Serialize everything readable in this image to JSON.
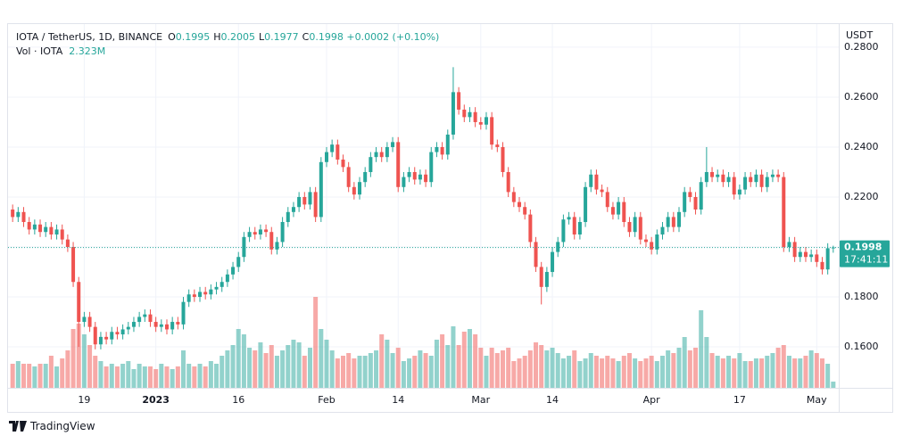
{
  "chart_data": {
    "type": "candlestick",
    "legend": {
      "symbol": "IOTA / TetherUS, 1D, BINANCE",
      "fields": [
        {
          "key": "O",
          "value": 0.1995
        },
        {
          "key": "H",
          "value": 0.2005
        },
        {
          "key": "L",
          "value": 0.1977
        },
        {
          "key": "C",
          "value": 0.1998
        }
      ],
      "change": "+0.0002 (+0.10%)",
      "volume_name": "Vol · IOTA",
      "volume_value": "2.323M"
    },
    "axis_unit": "USDT",
    "countdown": "17:41:11",
    "footer": "TradingView",
    "up_color": "#26a69a",
    "down_color": "#ef5350",
    "grid": true,
    "xlim": [
      -1,
      150
    ],
    "xticks": [
      {
        "value": 13,
        "label": "19"
      },
      {
        "value": 26,
        "label": "2023"
      },
      {
        "value": 41,
        "label": "16"
      },
      {
        "value": 57,
        "label": "Feb"
      },
      {
        "value": 70,
        "label": "14"
      },
      {
        "value": 85,
        "label": "Mar"
      },
      {
        "value": 98,
        "label": "14"
      },
      {
        "value": 116,
        "label": "Apr"
      },
      {
        "value": 132,
        "label": "17"
      },
      {
        "value": 146,
        "label": "May"
      }
    ],
    "ylim": [
      0.1436,
      0.2889
    ],
    "yticks": [
      {
        "value": 0.16,
        "label": "0.1600"
      },
      {
        "value": 0.18,
        "label": "0.1800"
      },
      {
        "value": 0.2,
        "label": "0.2000"
      },
      {
        "value": 0.22,
        "label": "0.2200"
      },
      {
        "value": 0.24,
        "label": "0.2400"
      },
      {
        "value": 0.26,
        "label": "0.2600"
      },
      {
        "value": 0.28,
        "label": "0.2800"
      }
    ],
    "open": [
      0.215,
      0.212,
      0.214,
      0.21,
      0.207,
      0.209,
      0.206,
      0.208,
      0.205,
      0.207,
      0.203,
      0.2,
      0.186,
      0.17,
      0.172,
      0.168,
      0.161,
      0.164,
      0.163,
      0.166,
      0.165,
      0.167,
      0.168,
      0.17,
      0.172,
      0.173,
      0.17,
      0.168,
      0.169,
      0.167,
      0.17,
      0.169,
      0.178,
      0.181,
      0.18,
      0.182,
      0.181,
      0.183,
      0.184,
      0.186,
      0.189,
      0.192,
      0.196,
      0.204,
      0.206,
      0.205,
      0.207,
      0.206,
      0.199,
      0.202,
      0.21,
      0.214,
      0.216,
      0.22,
      0.217,
      0.222,
      0.212,
      0.234,
      0.238,
      0.241,
      0.235,
      0.232,
      0.224,
      0.221,
      0.226,
      0.23,
      0.236,
      0.238,
      0.236,
      0.24,
      0.242,
      0.224,
      0.228,
      0.23,
      0.227,
      0.229,
      0.226,
      0.238,
      0.24,
      0.237,
      0.245,
      0.262,
      0.255,
      0.252,
      0.254,
      0.25,
      0.249,
      0.252,
      0.241,
      0.24,
      0.23,
      0.222,
      0.218,
      0.216,
      0.213,
      0.202,
      0.192,
      0.184,
      0.19,
      0.198,
      0.202,
      0.211,
      0.212,
      0.205,
      0.21,
      0.224,
      0.229,
      0.223,
      0.222,
      0.216,
      0.213,
      0.218,
      0.21,
      0.206,
      0.212,
      0.203,
      0.202,
      0.199,
      0.205,
      0.208,
      0.212,
      0.208,
      0.214,
      0.222,
      0.22,
      0.215,
      0.226,
      0.23,
      0.228,
      0.229,
      0.226,
      0.228,
      0.221,
      0.223,
      0.228,
      0.226,
      0.229,
      0.224,
      0.228,
      0.229,
      0.228,
      0.2,
      0.202,
      0.196,
      0.198,
      0.196,
      0.197,
      0.194,
      0.191,
      0.1995
    ],
    "high": [
      0.217,
      0.216,
      0.216,
      0.212,
      0.211,
      0.211,
      0.21,
      0.21,
      0.209,
      0.209,
      0.205,
      0.202,
      0.188,
      0.174,
      0.174,
      0.17,
      0.166,
      0.166,
      0.168,
      0.168,
      0.169,
      0.17,
      0.172,
      0.174,
      0.175,
      0.175,
      0.172,
      0.171,
      0.171,
      0.172,
      0.172,
      0.18,
      0.183,
      0.183,
      0.184,
      0.184,
      0.185,
      0.186,
      0.188,
      0.191,
      0.194,
      0.198,
      0.206,
      0.208,
      0.208,
      0.209,
      0.209,
      0.208,
      0.204,
      0.212,
      0.216,
      0.218,
      0.222,
      0.222,
      0.224,
      0.224,
      0.236,
      0.24,
      0.243,
      0.243,
      0.237,
      0.234,
      0.226,
      0.228,
      0.232,
      0.238,
      0.24,
      0.24,
      0.242,
      0.244,
      0.244,
      0.23,
      0.232,
      0.232,
      0.231,
      0.231,
      0.24,
      0.242,
      0.242,
      0.247,
      0.272,
      0.264,
      0.257,
      0.256,
      0.256,
      0.252,
      0.254,
      0.254,
      0.243,
      0.242,
      0.232,
      0.224,
      0.22,
      0.218,
      0.215,
      0.204,
      0.194,
      0.192,
      0.2,
      0.204,
      0.213,
      0.214,
      0.214,
      0.212,
      0.226,
      0.231,
      0.231,
      0.225,
      0.224,
      0.218,
      0.22,
      0.22,
      0.212,
      0.214,
      0.214,
      0.205,
      0.204,
      0.207,
      0.21,
      0.214,
      0.214,
      0.216,
      0.224,
      0.224,
      0.222,
      0.228,
      0.24,
      0.232,
      0.231,
      0.231,
      0.23,
      0.23,
      0.225,
      0.23,
      0.23,
      0.231,
      0.231,
      0.23,
      0.231,
      0.231,
      0.23,
      0.204,
      0.204,
      0.2,
      0.2,
      0.199,
      0.199,
      0.196,
      0.2015,
      0.2005
    ],
    "low": [
      0.21,
      0.21,
      0.208,
      0.205,
      0.205,
      0.204,
      0.204,
      0.203,
      0.203,
      0.201,
      0.198,
      0.184,
      0.16,
      0.168,
      0.166,
      0.159,
      0.159,
      0.161,
      0.161,
      0.163,
      0.163,
      0.165,
      0.166,
      0.168,
      0.17,
      0.168,
      0.166,
      0.166,
      0.165,
      0.165,
      0.167,
      0.167,
      0.176,
      0.178,
      0.178,
      0.179,
      0.179,
      0.181,
      0.182,
      0.184,
      0.187,
      0.19,
      0.194,
      0.202,
      0.203,
      0.203,
      0.204,
      0.197,
      0.197,
      0.2,
      0.208,
      0.212,
      0.214,
      0.215,
      0.215,
      0.21,
      0.21,
      0.232,
      0.236,
      0.233,
      0.23,
      0.222,
      0.219,
      0.219,
      0.224,
      0.228,
      0.234,
      0.234,
      0.234,
      0.238,
      0.222,
      0.222,
      0.226,
      0.225,
      0.225,
      0.224,
      0.224,
      0.236,
      0.235,
      0.235,
      0.243,
      0.253,
      0.25,
      0.25,
      0.248,
      0.247,
      0.247,
      0.239,
      0.238,
      0.228,
      0.22,
      0.216,
      0.214,
      0.211,
      0.2,
      0.19,
      0.177,
      0.182,
      0.188,
      0.196,
      0.2,
      0.209,
      0.203,
      0.203,
      0.208,
      0.222,
      0.221,
      0.22,
      0.214,
      0.211,
      0.211,
      0.208,
      0.204,
      0.204,
      0.201,
      0.2,
      0.197,
      0.197,
      0.203,
      0.206,
      0.206,
      0.206,
      0.212,
      0.218,
      0.213,
      0.213,
      0.224,
      0.226,
      0.226,
      0.224,
      0.224,
      0.219,
      0.219,
      0.221,
      0.224,
      0.224,
      0.222,
      0.222,
      0.226,
      0.226,
      0.198,
      0.198,
      0.194,
      0.194,
      0.194,
      0.194,
      0.192,
      0.189,
      0.189,
      0.1977
    ],
    "close": [
      0.212,
      0.214,
      0.21,
      0.207,
      0.209,
      0.206,
      0.208,
      0.205,
      0.207,
      0.203,
      0.2,
      0.186,
      0.17,
      0.172,
      0.168,
      0.161,
      0.164,
      0.163,
      0.166,
      0.165,
      0.167,
      0.168,
      0.17,
      0.172,
      0.173,
      0.17,
      0.168,
      0.169,
      0.167,
      0.17,
      0.169,
      0.178,
      0.181,
      0.18,
      0.182,
      0.181,
      0.183,
      0.184,
      0.186,
      0.189,
      0.192,
      0.196,
      0.204,
      0.206,
      0.205,
      0.207,
      0.206,
      0.199,
      0.202,
      0.21,
      0.214,
      0.216,
      0.22,
      0.217,
      0.222,
      0.212,
      0.234,
      0.238,
      0.241,
      0.235,
      0.232,
      0.224,
      0.221,
      0.226,
      0.23,
      0.236,
      0.238,
      0.236,
      0.24,
      0.242,
      0.224,
      0.228,
      0.23,
      0.227,
      0.229,
      0.226,
      0.238,
      0.24,
      0.237,
      0.245,
      0.262,
      0.255,
      0.252,
      0.254,
      0.25,
      0.249,
      0.252,
      0.241,
      0.24,
      0.23,
      0.222,
      0.218,
      0.216,
      0.213,
      0.202,
      0.192,
      0.184,
      0.19,
      0.198,
      0.202,
      0.211,
      0.212,
      0.205,
      0.21,
      0.224,
      0.229,
      0.223,
      0.222,
      0.216,
      0.213,
      0.218,
      0.21,
      0.206,
      0.212,
      0.203,
      0.202,
      0.199,
      0.205,
      0.208,
      0.212,
      0.208,
      0.214,
      0.222,
      0.22,
      0.215,
      0.226,
      0.23,
      0.228,
      0.229,
      0.226,
      0.228,
      0.221,
      0.223,
      0.228,
      0.226,
      0.229,
      0.224,
      0.228,
      0.229,
      0.228,
      0.2,
      0.202,
      0.196,
      0.198,
      0.196,
      0.197,
      0.194,
      0.191,
      0.1995,
      0.1998
    ],
    "volume": [
      9000000,
      10000000,
      9000000,
      9000000,
      8000000,
      9000000,
      9000000,
      12000000,
      8000000,
      11000000,
      14000000,
      22000000,
      24000000,
      20000000,
      16000000,
      12000000,
      10000000,
      8000000,
      9000000,
      8000000,
      9000000,
      10000000,
      7000000,
      9000000,
      8000000,
      8000000,
      7000000,
      9000000,
      8000000,
      7000000,
      8000000,
      14000000,
      9000000,
      8000000,
      9000000,
      8000000,
      10000000,
      9000000,
      12000000,
      14000000,
      16000000,
      22000000,
      20000000,
      15000000,
      14000000,
      17000000,
      13000000,
      16000000,
      12000000,
      14000000,
      16000000,
      18000000,
      17000000,
      12000000,
      15000000,
      34000000,
      22000000,
      18000000,
      14000000,
      11000000,
      12000000,
      13000000,
      11000000,
      12000000,
      12000000,
      13000000,
      14000000,
      20000000,
      18000000,
      13000000,
      15000000,
      10000000,
      11000000,
      12000000,
      14000000,
      13000000,
      12000000,
      18000000,
      20000000,
      16000000,
      23000000,
      16000000,
      21000000,
      22000000,
      20000000,
      15000000,
      12000000,
      15000000,
      13000000,
      14000000,
      15000000,
      10000000,
      11000000,
      12000000,
      14000000,
      17000000,
      16000000,
      14000000,
      15000000,
      13000000,
      11000000,
      12000000,
      14000000,
      10000000,
      11000000,
      13000000,
      12000000,
      11000000,
      12000000,
      11000000,
      10000000,
      12000000,
      13000000,
      11000000,
      10000000,
      11000000,
      12000000,
      10000000,
      12000000,
      14000000,
      13000000,
      15000000,
      19000000,
      14000000,
      15000000,
      29000000,
      19000000,
      13000000,
      12000000,
      11000000,
      12000000,
      11000000,
      13000000,
      10000000,
      10000000,
      11000000,
      11000000,
      12000000,
      13000000,
      15000000,
      16000000,
      12000000,
      11000000,
      11000000,
      12000000,
      14000000,
      13000000,
      11000000,
      9000000,
      2323000
    ]
  }
}
